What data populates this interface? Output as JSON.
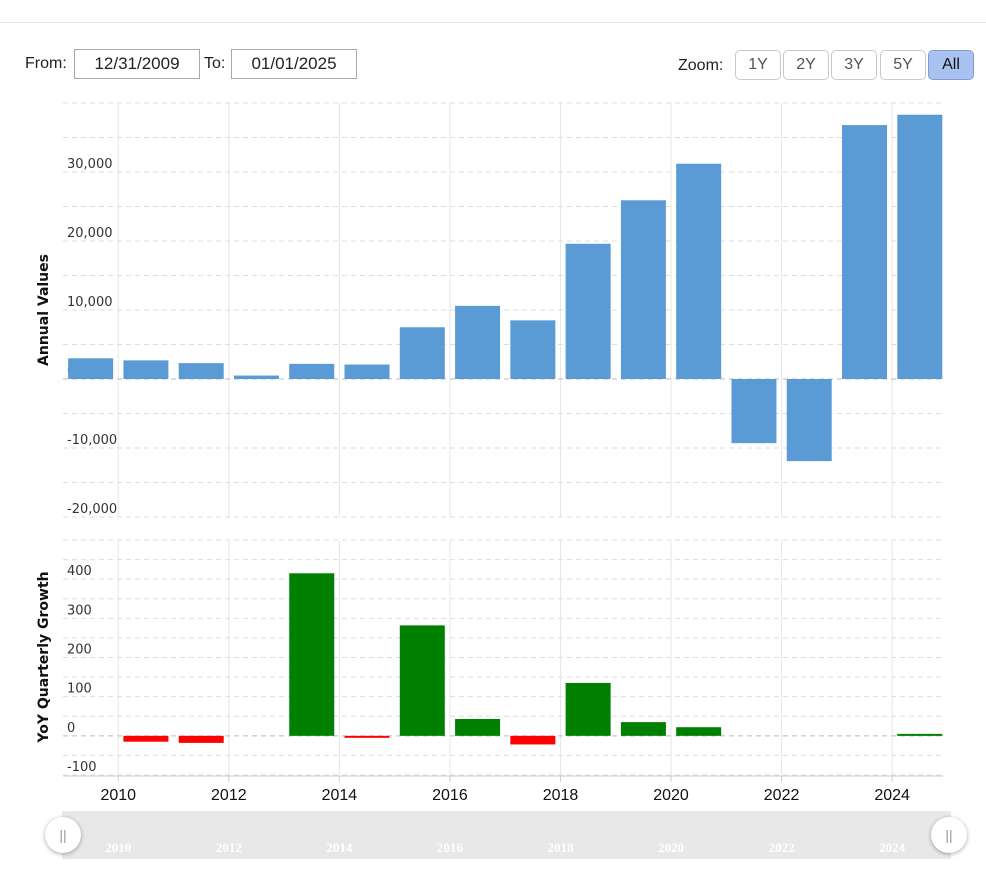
{
  "controls": {
    "from_label": "From:",
    "from_value": "12/31/2009",
    "to_label": "To:",
    "to_value": "01/01/2025",
    "zoom_label": "Zoom:",
    "zoom_options": [
      "1Y",
      "2Y",
      "3Y",
      "5Y",
      "All"
    ],
    "zoom_selected": "All",
    "handle_glyph": "||"
  },
  "colors": {
    "annual_bar": "#5b9bd5",
    "growth_positive": "#008000",
    "growth_negative": "#ff0000",
    "active_zoom": "#a9c2f0"
  },
  "chart_data": [
    {
      "type": "bar",
      "ylabel": "Annual Values",
      "ylim": [
        -20000,
        40000
      ],
      "y_ticks": [
        -20000,
        -10000,
        0,
        10000,
        20000,
        30000
      ],
      "y_tick_labels": [
        "-20,000",
        "-10,000",
        "0",
        "10,000",
        "20,000",
        "30,000"
      ],
      "grid": true,
      "categories": [
        "2009",
        "2010",
        "2011",
        "2012",
        "2013",
        "2014",
        "2015",
        "2016",
        "2017",
        "2018",
        "2019",
        "2020",
        "2021",
        "2022",
        "2023",
        "2024"
      ],
      "values": [
        3000,
        2700,
        2300,
        500,
        2200,
        2100,
        7500,
        10600,
        8500,
        19600,
        25900,
        31200,
        -9300,
        -11900,
        36800,
        38300
      ]
    },
    {
      "type": "bar",
      "ylabel": "YoY Quarterly Growth",
      "ylim": [
        -100,
        500
      ],
      "y_ticks": [
        -100,
        0,
        100,
        200,
        300,
        400
      ],
      "y_tick_labels": [
        "-100",
        "0",
        "100",
        "200",
        "300",
        "400"
      ],
      "grid": true,
      "categories": [
        "2009",
        "2010",
        "2011",
        "2012",
        "2013",
        "2014",
        "2015",
        "2016",
        "2017",
        "2018",
        "2019",
        "2020",
        "2021",
        "2022",
        "2023",
        "2024"
      ],
      "values": [
        null,
        -15,
        -18,
        null,
        415,
        -5,
        282,
        43,
        -22,
        135,
        35,
        22,
        null,
        null,
        null,
        5
      ]
    }
  ],
  "x_axis": {
    "tick_labels": [
      "2010",
      "2012",
      "2014",
      "2016",
      "2018",
      "2020",
      "2022",
      "2024"
    ]
  },
  "navigator": {
    "tick_labels": [
      "2010",
      "2012",
      "2014",
      "2016",
      "2018",
      "2020",
      "2022",
      "2024"
    ]
  }
}
